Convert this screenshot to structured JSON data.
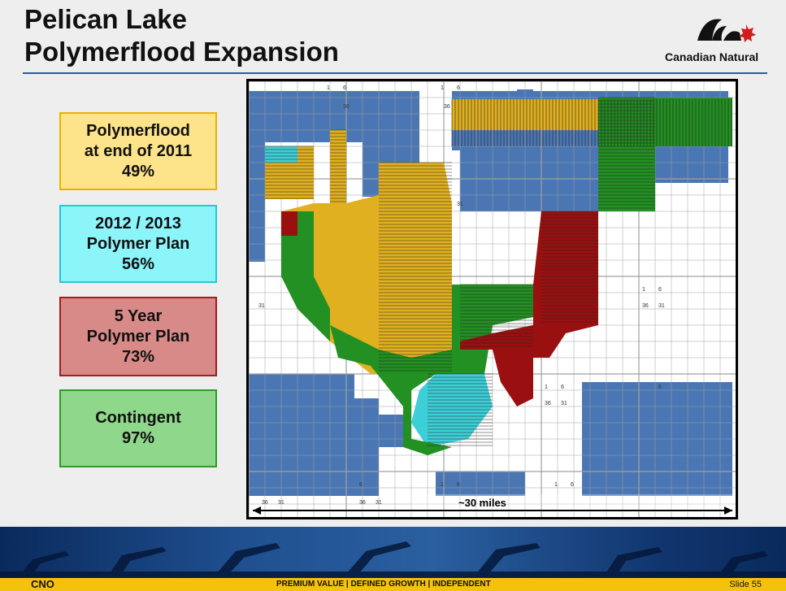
{
  "header": {
    "title_line1": "Pelican Lake",
    "title_line2": "Polymerflood Expansion",
    "logo_text": "Canadian Natural"
  },
  "legend": [
    {
      "line1": "Polymerflood",
      "line2": "at end of 2011",
      "value": "49%",
      "fill": "#fde48a",
      "border": "#e8b400"
    },
    {
      "line1": "2012 / 2013",
      "line2": "Polymer Plan",
      "value": "56%",
      "fill": "#8cf5fa",
      "border": "#24c7d6"
    },
    {
      "line1": "5 Year",
      "line2": "Polymer Plan",
      "value": "73%",
      "fill": "#d88a88",
      "border": "#a11e1e"
    },
    {
      "line1": "Contingent",
      "line2": "",
      "value": "97%",
      "fill": "#8fd78a",
      "border": "#2e9b2a"
    }
  ],
  "map": {
    "scale_label": "~30 miles",
    "township_numbers": [
      "1",
      "6",
      "36",
      "31"
    ],
    "colors": {
      "leased": "#4a77b4",
      "grid": "#a0a0a0",
      "polymer_2011": "#e0b020",
      "polymer_2012_2013": "#3ccfd8",
      "five_year": "#9a1010",
      "contingent": "#229022"
    }
  },
  "footer": {
    "left": "CNO",
    "tagline": "PREMIUM VALUE  |  DEFINED GROWTH  |  INDEPENDENT",
    "slide": "Slide 55"
  }
}
